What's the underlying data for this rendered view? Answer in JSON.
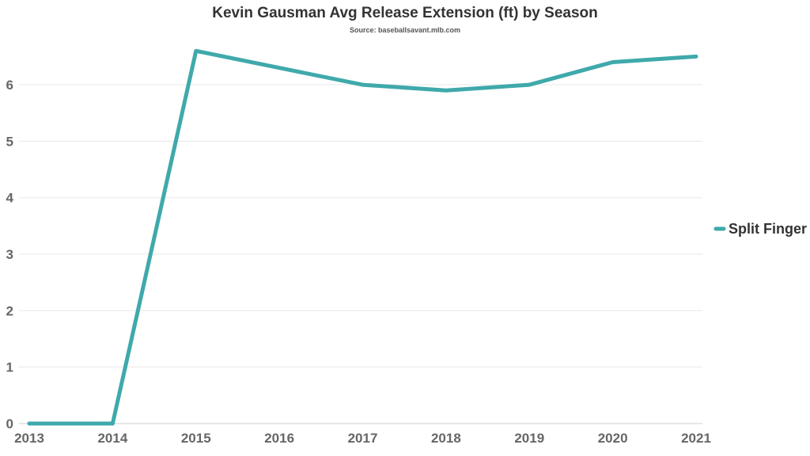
{
  "chart_data": {
    "type": "line",
    "title": "Kevin Gausman Avg Release Extension (ft) by Season",
    "subtitle": "Source: baseballsavant.mlb.com",
    "xlabel": "",
    "ylabel": "",
    "x": [
      "2013",
      "2014",
      "2015",
      "2016",
      "2017",
      "2018",
      "2019",
      "2020",
      "2021"
    ],
    "series": [
      {
        "name": "Split Finger",
        "values": [
          0,
          0,
          6.6,
          6.3,
          6.0,
          5.9,
          6.0,
          6.4,
          6.5
        ]
      }
    ],
    "yticks": [
      0,
      1,
      2,
      3,
      4,
      5,
      6
    ],
    "ylim": [
      0,
      6.8
    ],
    "grid": true,
    "legend_position": "right",
    "colors": {
      "line": "#3fa9ab",
      "grid": "#e8e8e8",
      "axis": "#cccccc"
    }
  }
}
